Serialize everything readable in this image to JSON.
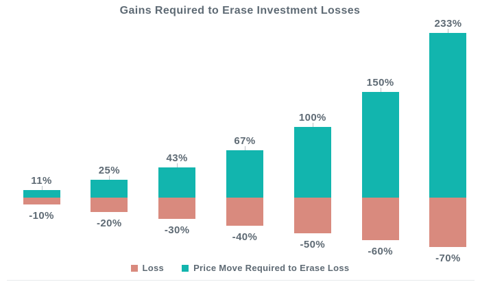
{
  "title": "Gains Required to Erase Investment Losses",
  "colors": {
    "loss": "#d98a7e",
    "gain": "#12b5ae",
    "text": "#5e6a74",
    "leader_tick": "#b9c0c5",
    "bottom_rule": "#e7eaec"
  },
  "legend": {
    "items": [
      {
        "label": "Loss",
        "color": "#d98a7e"
      },
      {
        "label": "Price Move Required to Erase Loss",
        "color": "#12b5ae"
      }
    ]
  },
  "chart_data": {
    "type": "bar",
    "stacked": true,
    "title": "Gains Required to Erase Investment Losses",
    "xlabel": "",
    "ylabel": "",
    "axis_visible": false,
    "grid": false,
    "legend_position": "bottom",
    "categories": [
      "-10%",
      "-20%",
      "-30%",
      "-40%",
      "-50%",
      "-60%",
      "-70%"
    ],
    "series": [
      {
        "name": "Loss",
        "values": [
          -10,
          -20,
          -30,
          -40,
          -50,
          -60,
          -70
        ],
        "color": "#d98a7e"
      },
      {
        "name": "Price Move Required to Erase Loss",
        "values": [
          11,
          25,
          43,
          67,
          100,
          150,
          233
        ],
        "color": "#12b5ae"
      }
    ],
    "data_labels": {
      "gain": [
        "11%",
        "25%",
        "43%",
        "67%",
        "100%",
        "150%",
        "233%"
      ],
      "loss": [
        "-10%",
        "-20%",
        "-30%",
        "-40%",
        "-50%",
        "-60%",
        "-70%"
      ]
    },
    "ylim": [
      -70,
      233
    ]
  }
}
